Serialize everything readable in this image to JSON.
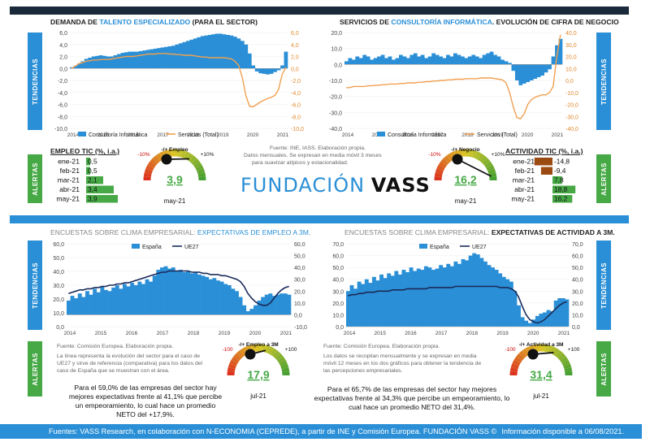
{
  "colors": {
    "blue": "#2a8fd6",
    "orange": "#f0a050",
    "navy": "#1a2a5a",
    "green": "#46a946",
    "brown": "#9b4a12"
  },
  "chart_data": [
    {
      "id": "demanda",
      "type": "bar",
      "title_parts": [
        "DEMANDA DE ",
        "TALENTO ESPECIALIZADO",
        " (PARA EL SECTOR)"
      ],
      "x_ticks": [
        "2014",
        "2015",
        "2016",
        "2017",
        "2018",
        "2019",
        "2020",
        "2021"
      ],
      "y_left_ticks": [
        "6,0",
        "4,0",
        "2,0",
        "0,0",
        "-2,0",
        "-4,0",
        "-6,0",
        "-8,0",
        "-10,0"
      ],
      "y_right_ticks": [
        "6,0",
        "4,0",
        "2,0",
        "0,0",
        "-2,0",
        "-4,0",
        "-6,0",
        "-8,0",
        "-10,0"
      ],
      "ylim": [
        -10,
        6
      ],
      "series": [
        {
          "name": "Consultoría Informática",
          "kind": "bar",
          "values": [
            0.2,
            0.4,
            0.8,
            1.2,
            1.6,
            1.8,
            2.0,
            2.1,
            2.2,
            2.1,
            2.0,
            2.0,
            2.2,
            2.4,
            2.6,
            2.7,
            2.8,
            2.8,
            2.8,
            2.9,
            3.0,
            3.1,
            3.2,
            3.3,
            3.4,
            3.5,
            3.6,
            3.7,
            3.8,
            4.0,
            4.2,
            4.4,
            4.6,
            4.8,
            5.0,
            5.2,
            5.4,
            5.5,
            5.6,
            5.7,
            5.8,
            5.8,
            5.7,
            5.6,
            5.5,
            5.3,
            5.0,
            4.6,
            4.0,
            2.5,
            0.5,
            -0.5,
            -0.8,
            -0.9,
            -1.0,
            -0.9,
            -0.6,
            -0.3,
            0.5,
            2.8
          ]
        },
        {
          "name": "Servicios (Total)",
          "kind": "line",
          "values": [
            0.0,
            0.4,
            0.8,
            1.0,
            1.2,
            1.3,
            1.4,
            1.4,
            1.5,
            1.5,
            1.5,
            1.6,
            1.7,
            1.8,
            1.9,
            2.0,
            2.0,
            2.0,
            2.1,
            2.2,
            2.3,
            2.4,
            2.4,
            2.4,
            2.5,
            2.5,
            2.5,
            2.4,
            2.4,
            2.3,
            2.3,
            2.2,
            2.2,
            2.2,
            2.1,
            2.0,
            1.9,
            1.9,
            1.8,
            1.8,
            1.8,
            1.8,
            1.8,
            1.7,
            1.6,
            1.2,
            0.5,
            -1.5,
            -4.5,
            -6.3,
            -6.4,
            -6.0,
            -5.6,
            -5.3,
            -5.0,
            -4.8,
            -4.5,
            -3.5,
            -1.0,
            0.2
          ]
        }
      ]
    },
    {
      "id": "servicios",
      "type": "bar",
      "title_parts": [
        "SERVICIOS DE ",
        "CONSULTORÍA INFORMÁTICA",
        ". EVOLUCIÓN DE CIFRA DE NEGOCIO"
      ],
      "x_ticks": [
        "2014",
        "2015",
        "2016",
        "2017",
        "2018",
        "2019",
        "2020",
        "2021"
      ],
      "y_left_ticks": [
        "20,0",
        "10,0",
        "0,0",
        "-10,0",
        "-20,0",
        "-30,0",
        "-40,0"
      ],
      "y_right_ticks": [
        "40,0",
        "30,0",
        "20,0",
        "10,0",
        "0,0",
        "-10,0",
        "-20,0",
        "-30,0",
        "-40,0"
      ],
      "ylim": [
        -40,
        20
      ],
      "series": [
        {
          "name": "Consultoría Informática",
          "kind": "bar",
          "values": [
            2,
            4,
            3,
            5,
            4,
            6,
            5,
            3,
            4,
            5,
            6,
            4,
            5,
            3,
            4,
            6,
            5,
            4,
            6,
            7,
            5,
            6,
            4,
            5,
            7,
            6,
            5,
            4,
            6,
            5,
            7,
            6,
            5,
            4,
            5,
            6,
            5,
            4,
            6,
            7,
            8,
            6,
            5,
            3,
            2,
            1,
            -4,
            -10,
            -13,
            -12,
            -11,
            -10,
            -9,
            -8,
            -7,
            -5,
            -3,
            5,
            12,
            16
          ]
        },
        {
          "name": "Servicios (Total)",
          "kind": "line",
          "values": [
            -6,
            -6,
            -5,
            -5,
            -5,
            -5,
            -4.5,
            -4.5,
            -4,
            -4,
            -3.5,
            -3.5,
            -3,
            -3,
            -3,
            -2.5,
            -2.5,
            -2,
            -2,
            -2,
            -1.5,
            -1.5,
            -1,
            -1,
            -0.5,
            -0.5,
            0,
            0,
            0.5,
            0.5,
            1,
            1,
            1,
            1.5,
            1.5,
            1.5,
            1.5,
            2,
            2,
            2,
            2,
            1.5,
            1,
            0.5,
            -2,
            -10,
            -22,
            -31,
            -32,
            -28,
            -20,
            -16,
            -14,
            -13,
            -12,
            -12,
            -10,
            -5,
            20,
            38
          ]
        }
      ]
    },
    {
      "id": "empleo3m",
      "type": "bar",
      "title_parts": [
        "ENCUESTAS SOBRE CLIMA EMPRESARIAL: ",
        "EXPECTATIVAS DE EMPLEO A 3M."
      ],
      "x_ticks": [
        "2014",
        "2015",
        "2016",
        "2017",
        "2018",
        "2019",
        "2020",
        "2021"
      ],
      "y_left_ticks": [
        "60,0",
        "50,0",
        "40,0",
        "30,0",
        "20,0",
        "10,0",
        "0,0"
      ],
      "y_right_ticks": [
        "60,0",
        "50,0",
        "40,0",
        "30,0",
        "20,0",
        "10,0",
        "0,0",
        "-10,0"
      ],
      "ylim": [
        -10,
        60
      ],
      "series": [
        {
          "name": "España",
          "kind": "bar",
          "values": [
            12,
            16,
            14,
            18,
            15,
            20,
            17,
            22,
            19,
            24,
            21,
            20,
            23,
            25,
            22,
            26,
            24,
            27,
            25,
            28,
            26,
            30,
            28,
            33,
            38,
            40,
            41,
            39,
            40,
            37,
            38,
            36,
            37,
            35,
            36,
            34,
            33,
            32,
            30,
            31,
            29,
            28,
            26,
            25,
            22,
            20,
            15,
            8,
            3,
            5,
            8,
            12,
            15,
            17,
            18,
            16,
            17,
            18,
            18,
            17
          ]
        },
        {
          "name": "UE27",
          "kind": "line",
          "values": [
            18,
            19,
            20,
            21,
            21,
            22,
            22,
            23,
            23,
            24,
            24,
            25,
            25,
            26,
            26,
            27,
            27,
            28,
            29,
            30,
            31,
            32,
            33,
            34,
            35,
            36,
            36,
            37,
            37,
            37,
            37,
            37,
            37,
            36,
            36,
            36,
            35,
            35,
            34,
            34,
            34,
            33,
            33,
            32,
            31,
            30,
            28,
            24,
            18,
            14,
            11,
            9,
            8,
            8,
            10,
            14,
            18,
            21,
            23,
            24
          ]
        }
      ]
    },
    {
      "id": "actividad3m",
      "type": "bar",
      "title_parts": [
        "ENCUESTAS SOBRE CLIMA EMPRESARIAL: ",
        "EXPECTATIVAS DE ACTIVIDAD A 3M."
      ],
      "x_ticks": [
        "2014",
        "2015",
        "2016",
        "2017",
        "2018",
        "2019",
        "2020",
        "2021"
      ],
      "y_left_ticks": [
        "70,0",
        "60,0",
        "50,0",
        "40,0",
        "30,0",
        "20,0",
        "10,0",
        "0,0"
      ],
      "y_right_ticks": [
        "70,0",
        "60,0",
        "50,0",
        "40,0",
        "30,0",
        "20,0",
        "10,0",
        "0,0"
      ],
      "ylim": [
        0,
        70
      ],
      "series": [
        {
          "name": "España",
          "kind": "bar",
          "values": [
            30,
            35,
            32,
            38,
            36,
            40,
            37,
            42,
            39,
            44,
            41,
            45,
            43,
            47,
            44,
            48,
            46,
            50,
            47,
            49,
            48,
            51,
            50,
            48,
            49,
            52,
            50,
            53,
            51,
            55,
            53,
            57,
            56,
            60,
            62,
            61,
            58,
            55,
            52,
            50,
            48,
            45,
            42,
            40,
            38,
            30,
            18,
            8,
            5,
            3,
            6,
            9,
            11,
            12,
            14,
            13,
            22,
            24,
            24,
            23
          ]
        },
        {
          "name": "UE27",
          "kind": "line",
          "values": [
            26,
            27,
            27,
            28,
            28,
            29,
            29,
            29,
            30,
            30,
            30,
            30,
            31,
            31,
            31,
            31,
            32,
            32,
            32,
            32,
            32,
            32,
            33,
            33,
            33,
            33,
            33,
            33,
            33,
            34,
            34,
            34,
            34,
            34,
            34,
            34,
            34,
            34,
            34,
            34,
            34,
            33,
            33,
            33,
            32,
            30,
            25,
            17,
            10,
            6,
            4,
            3,
            4,
            6,
            9,
            12,
            15,
            18,
            20,
            21
          ]
        }
      ]
    }
  ],
  "legend": {
    "consultoria": "Consultoría Informática",
    "servicios": "Servicios (Total)",
    "espana": "España",
    "ue27": "UE27"
  },
  "side_tabs": {
    "tendencias": "TENDENCIAS",
    "alertas": "ALERTAS"
  },
  "empleo_tic": {
    "header": "EMPLEO TIC (%, i.a.)",
    "rows": [
      {
        "month": "ene-21",
        "value": "0,5",
        "v": 0.5
      },
      {
        "month": "feb-21",
        "value": "0,5",
        "v": 0.5
      },
      {
        "month": "mar-21",
        "value": "2,1",
        "v": 2.1
      },
      {
        "month": "abr-21",
        "value": "3,4",
        "v": 3.4
      },
      {
        "month": "may-21",
        "value": "3,9",
        "v": 3.9
      }
    ]
  },
  "actividad_tic": {
    "header": "ACTIVIDAD TIC (%, i.a.)",
    "rows": [
      {
        "month": "ene-21",
        "value": "-14,8",
        "v": -14.8
      },
      {
        "month": "feb-21",
        "value": "-9,4",
        "v": -9.4
      },
      {
        "month": "mar-21",
        "value": "7,8",
        "v": 7.8
      },
      {
        "month": "abr-21",
        "value": "18,8",
        "v": 18.8
      },
      {
        "month": "may-21",
        "value": "16,2",
        "v": 16.2
      }
    ]
  },
  "gauges": {
    "empleo": {
      "title": "-/+ Empleo",
      "min": "-10%",
      "max": "+10%",
      "value": "3,9",
      "fraction": 0.69,
      "period": "may-21"
    },
    "negocio": {
      "title": "-/+ Negocio",
      "min": "-10%",
      "max": "+10%",
      "value": "16,2",
      "fraction": 0.95,
      "period": "may-21"
    },
    "empleo3m": {
      "title": "-/+ Empleo a 3M",
      "min": "-100",
      "max": "+100",
      "value": "17,9",
      "fraction": 0.59,
      "period": "jul-21"
    },
    "actividad3m": {
      "title": "-/+ Actividad a 3M",
      "min": "-100",
      "max": "+100",
      "value": "31,4",
      "fraction": 0.66,
      "period": "jul-21"
    }
  },
  "notes": {
    "top": "Fuente: INE, IASS. Elaboración propia.",
    "top2": "Datos mensuales. Se expresan en media móvil 3 meses",
    "top3": "para suavizar atípicos y estacionalidad.",
    "left_src": "Fuente: Comisión Europea. Elaboración propia.",
    "left1": "La línea representa la evolución del sector para el caso de",
    "left2": "UE27 y sirve de referencia (comparativa) para los datos del",
    "left3": "caso de España que se muestran con el área.",
    "right_src": "Fuente: Comisión Europea. Elaboración propia.",
    "right1": "Los datos se recopilan mensualmente y se expresan en media",
    "right2": "móvil 12 meses en los dos gráficos para obtener la tendencia de",
    "right3": "las percepciones empresariales."
  },
  "summaries": {
    "left1": "Para el 59,0% de las empresas del sector hay",
    "left2": "mejores expectativas frente al 41,1% que percibe",
    "left3": "un empeoramiento, lo cual hace un promedio",
    "left4": "NETO del +17,9%.",
    "right1": "Para el 65,7% de las empresas del sector hay mejores",
    "right2": "expectativas frente al 34,3% que percibe un empeoramiento, lo",
    "right3": "cual hace un promedio NETO del 31,4%."
  },
  "logo": {
    "fundacion": "FUNDACIÓN",
    "vass": "VASS"
  },
  "footer": {
    "left": "Fuentes: VASS Research, en colaboración con N-ECONOMIA (CEPREDE), a partir de INE y Comisión Europea. FUNDACIÓN VASS ©",
    "right": "Información disponible a 06/08/2021."
  }
}
